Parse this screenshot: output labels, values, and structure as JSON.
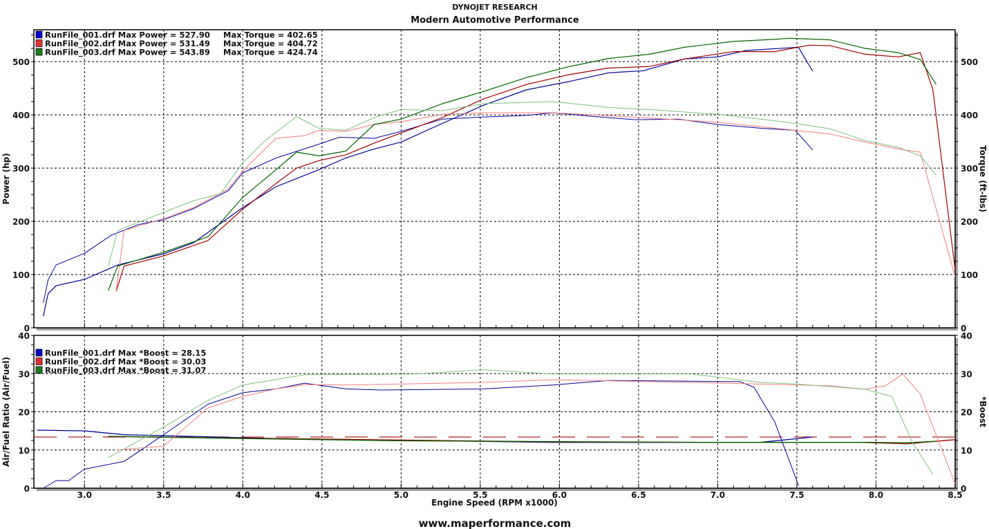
{
  "header": {
    "title": "DYNOJET RESEARCH",
    "subtitle": "Modern Automotive Performance"
  },
  "footer": {
    "url": "www.maperformance.com"
  },
  "chart_data": [
    {
      "type": "line",
      "name": "power-torque",
      "ylabel_left": "Power (hp)",
      "ylabel_right": "Torque (ft-lbs)",
      "xlim": [
        2.68,
        8.5
      ],
      "ylim": [
        0,
        560
      ],
      "yticks": [
        0,
        100,
        200,
        300,
        400,
        500
      ],
      "grid": true,
      "legend_position": "top-left",
      "legend": [
        {
          "label": "RunFile_001.drf Max Power = 527.90",
          "torque_label": "Max Torque = 402.65",
          "color": "#0000cc"
        },
        {
          "label": "RunFile_002.drf Max Power = 531.49",
          "torque_label": "Max Torque = 404.72",
          "color": "#e03030"
        },
        {
          "label": "RunFile_003.drf Max Power = 543.89",
          "torque_label": "Max Torque = 424.74",
          "color": "#1a7a1a"
        }
      ],
      "series": [
        {
          "name": "RunFile_001 Power",
          "color": "#000090",
          "width": 1.2,
          "points": [
            [
              2.74,
              22
            ],
            [
              2.77,
              64
            ],
            [
              2.82,
              79
            ],
            [
              3.0,
              91
            ],
            [
              3.21,
              118
            ],
            [
              3.5,
              139
            ],
            [
              3.69,
              160
            ],
            [
              4.0,
              226
            ],
            [
              4.21,
              265
            ],
            [
              4.48,
              297
            ],
            [
              4.65,
              319
            ],
            [
              4.83,
              336
            ],
            [
              5.0,
              349
            ],
            [
              5.26,
              384
            ],
            [
              5.52,
              418
            ],
            [
              5.79,
              447
            ],
            [
              6.05,
              462
            ],
            [
              6.31,
              479
            ],
            [
              6.53,
              483
            ],
            [
              6.79,
              505
            ],
            [
              7.0,
              509
            ],
            [
              7.18,
              521
            ],
            [
              7.45,
              526
            ],
            [
              7.51,
              527
            ],
            [
              7.6,
              482
            ]
          ]
        },
        {
          "name": "RunFile_001 Torque",
          "color": "#0000a0",
          "width": 1,
          "points": [
            [
              2.74,
              47
            ],
            [
              2.77,
              90
            ],
            [
              2.82,
              118
            ],
            [
              3.0,
              140
            ],
            [
              3.17,
              174
            ],
            [
              3.34,
              194
            ],
            [
              3.5,
              203
            ],
            [
              3.69,
              224
            ],
            [
              3.91,
              258
            ],
            [
              4.0,
              291
            ],
            [
              4.21,
              319
            ],
            [
              4.48,
              345
            ],
            [
              4.61,
              358
            ],
            [
              4.83,
              356
            ],
            [
              5.0,
              369
            ],
            [
              5.26,
              392
            ],
            [
              5.52,
              396
            ],
            [
              5.79,
              399
            ],
            [
              5.96,
              404
            ],
            [
              6.22,
              397
            ],
            [
              6.48,
              391
            ],
            [
              6.75,
              392
            ],
            [
              7.0,
              382
            ],
            [
              7.27,
              375
            ],
            [
              7.49,
              371
            ],
            [
              7.6,
              334
            ]
          ]
        },
        {
          "name": "RunFile_002 Power",
          "color": "#a00000",
          "width": 1.2,
          "points": [
            [
              3.2,
              69
            ],
            [
              3.25,
              116
            ],
            [
              3.5,
              135
            ],
            [
              3.78,
              164
            ],
            [
              4.0,
              223
            ],
            [
              4.21,
              271
            ],
            [
              4.34,
              300
            ],
            [
              4.48,
              314
            ],
            [
              4.65,
              325
            ],
            [
              4.83,
              347
            ],
            [
              5.0,
              366
            ],
            [
              5.26,
              395
            ],
            [
              5.52,
              430
            ],
            [
              5.79,
              457
            ],
            [
              6.05,
              475
            ],
            [
              6.31,
              488
            ],
            [
              6.57,
              491
            ],
            [
              6.79,
              505
            ],
            [
              7.1,
              519
            ],
            [
              7.36,
              519
            ],
            [
              7.58,
              531
            ],
            [
              7.71,
              530
            ],
            [
              7.93,
              514
            ],
            [
              8.14,
              509
            ],
            [
              8.28,
              517
            ],
            [
              8.36,
              447
            ],
            [
              8.5,
              109
            ]
          ]
        },
        {
          "name": "RunFile_002 Torque",
          "color": "#f07a7a",
          "width": 1,
          "points": [
            [
              3.2,
              70
            ],
            [
              3.25,
              183
            ],
            [
              3.5,
              205
            ],
            [
              3.69,
              226
            ],
            [
              3.91,
              261
            ],
            [
              4.0,
              295
            ],
            [
              4.21,
              356
            ],
            [
              4.39,
              361
            ],
            [
              4.48,
              371
            ],
            [
              4.65,
              369
            ],
            [
              4.83,
              382
            ],
            [
              5.0,
              387
            ],
            [
              5.26,
              401
            ],
            [
              5.52,
              404
            ],
            [
              5.96,
              404
            ],
            [
              6.4,
              397
            ],
            [
              6.75,
              391
            ],
            [
              7.0,
              386
            ],
            [
              7.27,
              378
            ],
            [
              7.49,
              371
            ],
            [
              7.71,
              364
            ],
            [
              7.93,
              349
            ],
            [
              8.14,
              336
            ],
            [
              8.28,
              330
            ],
            [
              8.5,
              96
            ]
          ]
        },
        {
          "name": "RunFile_003 Power",
          "color": "#006400",
          "width": 1.2,
          "points": [
            [
              3.15,
              70
            ],
            [
              3.21,
              116
            ],
            [
              3.5,
              142
            ],
            [
              3.78,
              171
            ],
            [
              4.0,
              245
            ],
            [
              4.21,
              297
            ],
            [
              4.34,
              330
            ],
            [
              4.48,
              323
            ],
            [
              4.65,
              332
            ],
            [
              4.83,
              382
            ],
            [
              5.0,
              392
            ],
            [
              5.26,
              421
            ],
            [
              5.52,
              444
            ],
            [
              5.79,
              470
            ],
            [
              6.05,
              490
            ],
            [
              6.31,
              506
            ],
            [
              6.57,
              514
            ],
            [
              6.79,
              527
            ],
            [
              7.1,
              538
            ],
            [
              7.36,
              542
            ],
            [
              7.45,
              544
            ],
            [
              7.71,
              541
            ],
            [
              7.93,
              525
            ],
            [
              8.14,
              517
            ],
            [
              8.28,
              504
            ],
            [
              8.38,
              457
            ]
          ]
        },
        {
          "name": "RunFile_003 Torque",
          "color": "#7fbf7f",
          "width": 1,
          "points": [
            [
              3.15,
              116
            ],
            [
              3.21,
              183
            ],
            [
              3.5,
              217
            ],
            [
              3.69,
              239
            ],
            [
              3.86,
              252
            ],
            [
              4.0,
              310
            ],
            [
              4.13,
              349
            ],
            [
              4.34,
              397
            ],
            [
              4.48,
              375
            ],
            [
              4.65,
              371
            ],
            [
              4.83,
              395
            ],
            [
              5.0,
              410
            ],
            [
              5.26,
              408
            ],
            [
              5.52,
              421
            ],
            [
              5.96,
              425
            ],
            [
              6.31,
              414
            ],
            [
              6.57,
              410
            ],
            [
              7.0,
              401
            ],
            [
              7.27,
              392
            ],
            [
              7.49,
              384
            ],
            [
              7.71,
              374
            ],
            [
              7.93,
              352
            ],
            [
              8.14,
              339
            ],
            [
              8.28,
              323
            ],
            [
              8.38,
              287
            ]
          ]
        }
      ]
    },
    {
      "type": "line",
      "name": "afr-boost",
      "ylabel_left": "Air/Fuel Ratio (Air/Fuel)",
      "ylabel_right": "*Boost",
      "xlabel": "Engine Speed (RPM x1000)",
      "xlim": [
        2.68,
        8.5
      ],
      "xticks": [
        "3.0",
        "3.5",
        "4.0",
        "4.5",
        "5.0",
        "5.5",
        "6.0",
        "6.5",
        "7.0",
        "7.5",
        "8.0",
        "8.5"
      ],
      "ylim": [
        0,
        40
      ],
      "yticks": [
        0,
        10,
        20,
        30,
        40
      ],
      "grid": true,
      "legend_position": "top-left",
      "reference_afr": 13.4,
      "legend": [
        {
          "label": "RunFile_001.drf Max *Boost = 28.15",
          "color": "#0000cc"
        },
        {
          "label": "RunFile_002.drf Max *Boost = 30.03",
          "color": "#e03030"
        },
        {
          "label": "RunFile_003.drf Max *Boost = 31.07",
          "color": "#1a7a1a"
        }
      ],
      "series": [
        {
          "name": "RunFile_001 AFR",
          "color": "#000090",
          "width": 1.3,
          "points": [
            [
              2.7,
              15.2
            ],
            [
              3.0,
              15
            ],
            [
              3.25,
              14
            ],
            [
              4.21,
              13
            ],
            [
              5.09,
              12.5
            ],
            [
              5.96,
              12
            ],
            [
              7.27,
              12
            ],
            [
              7.6,
              13.4
            ]
          ]
        },
        {
          "name": "RunFile_002 AFR",
          "color": "#a00000",
          "width": 1.3,
          "points": [
            [
              3.2,
              13.5
            ],
            [
              4.0,
              13.1
            ],
            [
              5.0,
              12.6
            ],
            [
              6.0,
              12.1
            ],
            [
              7.0,
              12
            ],
            [
              7.9,
              12
            ],
            [
              8.2,
              11.6
            ],
            [
              8.3,
              12
            ],
            [
              8.5,
              12.7
            ]
          ]
        },
        {
          "name": "RunFile_003 AFR",
          "color": "#006400",
          "width": 1.3,
          "points": [
            [
              3.15,
              13.6
            ],
            [
              4.0,
              13
            ],
            [
              5.0,
              12.4
            ],
            [
              6.0,
              12.2
            ],
            [
              7.0,
              12
            ],
            [
              8.0,
              12
            ],
            [
              8.2,
              11.9
            ],
            [
              8.38,
              12.3
            ]
          ]
        },
        {
          "name": "RunFile_001 Boost",
          "color": "#000090",
          "width": 1,
          "points": [
            [
              2.74,
              0
            ],
            [
              2.82,
              2
            ],
            [
              2.9,
              2
            ],
            [
              3.0,
              5
            ],
            [
              3.25,
              7
            ],
            [
              3.5,
              14
            ],
            [
              3.78,
              22
            ],
            [
              4.0,
              25
            ],
            [
              4.21,
              26
            ],
            [
              4.39,
              27.5
            ],
            [
              4.65,
              26
            ],
            [
              4.87,
              25.7
            ],
            [
              5.52,
              26
            ],
            [
              5.96,
              27
            ],
            [
              6.31,
              28.2
            ],
            [
              6.83,
              28
            ],
            [
              7.14,
              27.9
            ],
            [
              7.23,
              26.4
            ],
            [
              7.36,
              17.4
            ],
            [
              7.49,
              3
            ],
            [
              7.51,
              0.7
            ]
          ]
        },
        {
          "name": "RunFile_002 Boost",
          "color": "#f08080",
          "width": 1,
          "points": [
            [
              3.2,
              10
            ],
            [
              3.5,
              11
            ],
            [
              3.78,
              21
            ],
            [
              4.0,
              24
            ],
            [
              4.21,
              26
            ],
            [
              4.39,
              27.1
            ],
            [
              4.65,
              27
            ],
            [
              5.52,
              27.7
            ],
            [
              5.96,
              28.4
            ],
            [
              6.83,
              27.7
            ],
            [
              7.71,
              26.8
            ],
            [
              7.93,
              25.9
            ],
            [
              8.06,
              26.8
            ],
            [
              8.17,
              29.9
            ],
            [
              8.28,
              24.6
            ],
            [
              8.5,
              1.1
            ]
          ]
        },
        {
          "name": "RunFile_003 Boost",
          "color": "#80bf80",
          "width": 1,
          "points": [
            [
              3.15,
              8
            ],
            [
              3.5,
              16
            ],
            [
              3.78,
              23
            ],
            [
              4.0,
              27
            ],
            [
              4.39,
              29.7
            ],
            [
              5.09,
              29.9
            ],
            [
              5.52,
              31
            ],
            [
              5.96,
              29.9
            ],
            [
              6.83,
              29.9
            ],
            [
              7.27,
              27.7
            ],
            [
              7.49,
              27.3
            ],
            [
              7.93,
              25.9
            ],
            [
              8.1,
              24
            ],
            [
              8.23,
              12
            ],
            [
              8.36,
              3.6
            ]
          ]
        }
      ]
    }
  ]
}
